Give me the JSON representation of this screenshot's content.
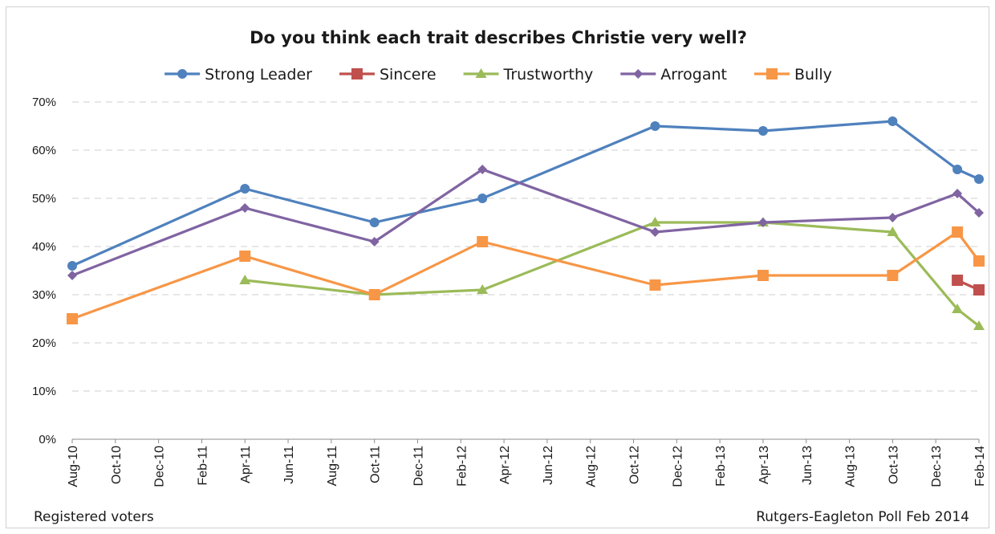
{
  "chart_data": {
    "type": "line",
    "title": "Do you think each trait describes Christie very well?",
    "footnote_left": "Registered voters",
    "footnote_right": "Rutgers-Eagleton Poll Feb 2014",
    "x_ticks": [
      "Aug-10",
      "Oct-10",
      "Dec-10",
      "Feb-11",
      "Apr-11",
      "Jun-11",
      "Aug-11",
      "Oct-11",
      "Dec-11",
      "Feb-12",
      "Apr-12",
      "Jun-12",
      "Aug-12",
      "Oct-12",
      "Dec-12",
      "Feb-13",
      "Apr-13",
      "Jun-13",
      "Aug-13",
      "Oct-13",
      "Dec-13",
      "Feb-14"
    ],
    "y_ticks": [
      "0%",
      "10%",
      "20%",
      "30%",
      "40%",
      "50%",
      "60%",
      "70%"
    ],
    "ylim": [
      0,
      70
    ],
    "grid": true,
    "legend_position": "top",
    "series": [
      {
        "name": "Strong Leader",
        "color": "#4f81bd",
        "marker": "circle",
        "points": [
          {
            "x": "Aug-10",
            "y": 36
          },
          {
            "x": "Apr-11",
            "y": 52
          },
          {
            "x": "Oct-11",
            "y": 45
          },
          {
            "x": "Mar-12",
            "y": 50
          },
          {
            "x": "Nov-12",
            "y": 65
          },
          {
            "x": "Apr-13",
            "y": 64
          },
          {
            "x": "Oct-13",
            "y": 66
          },
          {
            "x": "Jan-14",
            "y": 56
          },
          {
            "x": "Feb-14",
            "y": 54
          }
        ]
      },
      {
        "name": "Sincere",
        "color": "#c0504d",
        "marker": "square",
        "points": [
          {
            "x": "Jan-14",
            "y": 33
          },
          {
            "x": "Feb-14",
            "y": 31
          }
        ]
      },
      {
        "name": "Trustworthy",
        "color": "#9bbb59",
        "marker": "triangle",
        "points": [
          {
            "x": "Apr-11",
            "y": 33
          },
          {
            "x": "Oct-11",
            "y": 30
          },
          {
            "x": "Mar-12",
            "y": 31
          },
          {
            "x": "Nov-12",
            "y": 45
          },
          {
            "x": "Apr-13",
            "y": 45
          },
          {
            "x": "Oct-13",
            "y": 43
          },
          {
            "x": "Jan-14",
            "y": 27
          },
          {
            "x": "Feb-14",
            "y": 23.5
          }
        ]
      },
      {
        "name": "Arrogant",
        "color": "#8064a2",
        "marker": "diamond",
        "points": [
          {
            "x": "Aug-10",
            "y": 34
          },
          {
            "x": "Apr-11",
            "y": 48
          },
          {
            "x": "Oct-11",
            "y": 41
          },
          {
            "x": "Mar-12",
            "y": 56
          },
          {
            "x": "Nov-12",
            "y": 43
          },
          {
            "x": "Apr-13",
            "y": 45
          },
          {
            "x": "Oct-13",
            "y": 46
          },
          {
            "x": "Jan-14",
            "y": 51
          },
          {
            "x": "Feb-14",
            "y": 47
          }
        ]
      },
      {
        "name": "Bully",
        "color": "#f79646",
        "marker": "square",
        "points": [
          {
            "x": "Aug-10",
            "y": 25
          },
          {
            "x": "Apr-11",
            "y": 38
          },
          {
            "x": "Oct-11",
            "y": 30
          },
          {
            "x": "Mar-12",
            "y": 41
          },
          {
            "x": "Nov-12",
            "y": 32
          },
          {
            "x": "Apr-13",
            "y": 34
          },
          {
            "x": "Oct-13",
            "y": 34
          },
          {
            "x": "Jan-14",
            "y": 43
          },
          {
            "x": "Feb-14",
            "y": 37
          }
        ]
      }
    ]
  }
}
